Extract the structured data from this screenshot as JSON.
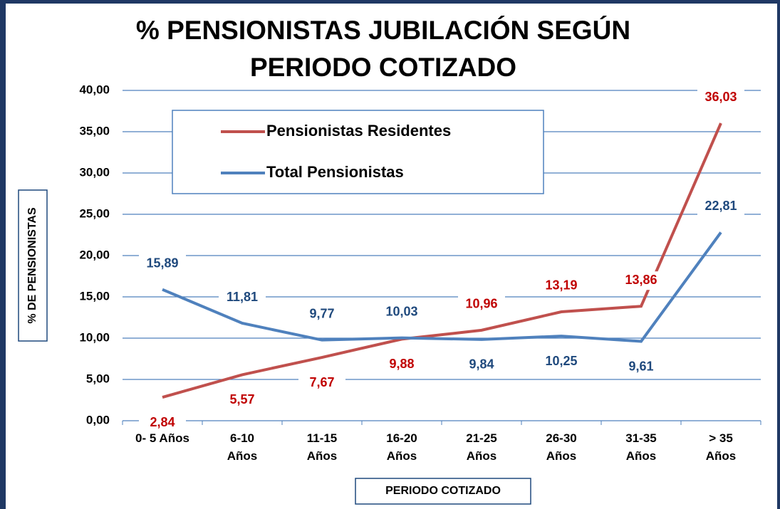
{
  "chart_data": {
    "type": "line",
    "title": "% PENSIONISTAS JUBILACIÓN SEGÚN PERIODO COTIZADO",
    "x_label": "PERIODO COTIZADO",
    "y_label": "% DE PENSIONISTAS",
    "categories": [
      "0- 5 Años",
      "6-10\nAños",
      "11-15\nAños",
      "16-20\nAños",
      "21-25\nAños",
      "26-30\nAños",
      "31-35\nAños",
      ">  35\nAños"
    ],
    "series": [
      {
        "name": "Pensionistas Residentes",
        "color": "#c0504d",
        "label_color": "#c00000",
        "values": [
          2.84,
          5.57,
          7.67,
          9.88,
          10.96,
          13.19,
          13.86,
          36.03
        ],
        "value_labels": [
          "2,84",
          "5,57",
          "7,67",
          "9,88",
          "10,96",
          "13,19",
          "13,86",
          "36,03"
        ]
      },
      {
        "name": "Total Pensionistas",
        "color": "#4f81bd",
        "label_color": "#1f497d",
        "values": [
          15.89,
          11.81,
          9.77,
          10.03,
          9.84,
          10.25,
          9.61,
          22.81
        ],
        "value_labels": [
          "15,89",
          "11,81",
          "9,77",
          "10,03",
          "9,84",
          "10,25",
          "9,61",
          "22,81"
        ]
      }
    ],
    "ylim": [
      0,
      40
    ],
    "yticks": [
      {
        "value": 0,
        "label": "0,00"
      },
      {
        "value": 5,
        "label": "5,00"
      },
      {
        "value": 10,
        "label": "10,00"
      },
      {
        "value": 15,
        "label": "15,00"
      },
      {
        "value": 20,
        "label": "20,00"
      },
      {
        "value": 25,
        "label": "25,00"
      },
      {
        "value": 30,
        "label": "30,00"
      },
      {
        "value": 35,
        "label": "35,00"
      },
      {
        "value": 40,
        "label": "40,00"
      }
    ],
    "grid": true
  }
}
